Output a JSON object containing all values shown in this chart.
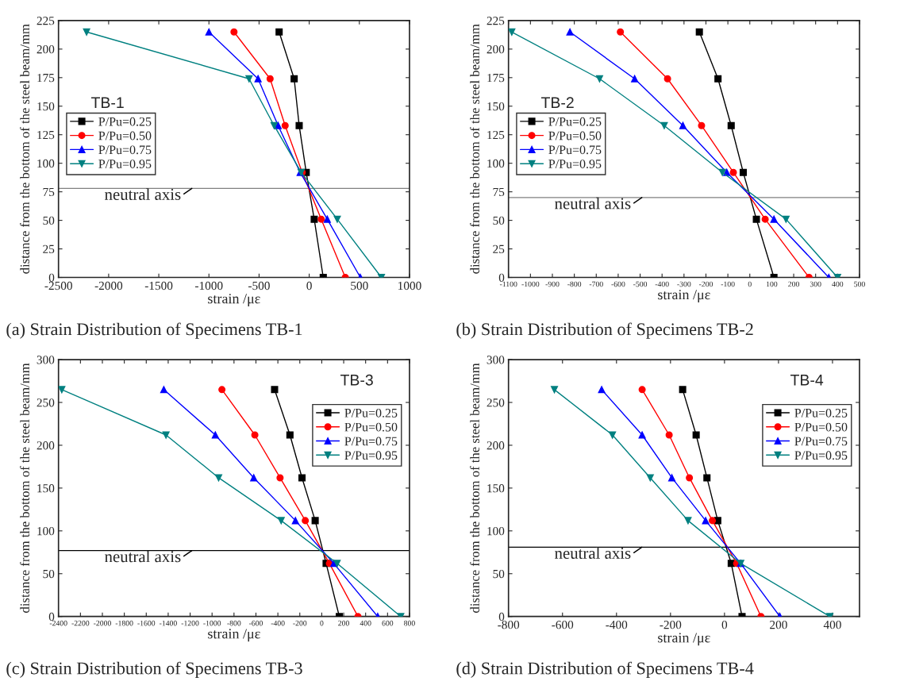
{
  "chart_data": [
    {
      "type": "line",
      "title": "(a) Strain Distribution of Specimens TB-1",
      "xlabel": "strain /με",
      "ylabel": "distance from the bottom of the steel beam/mm",
      "annotations": [
        "TB-1"
      ],
      "xlim": [
        -2500,
        1000
      ],
      "xticks": [
        -2500,
        -2000,
        -1500,
        -1000,
        -500,
        0,
        500,
        1000
      ],
      "ylim": [
        0,
        225
      ],
      "yticks": [
        0,
        25,
        50,
        75,
        100,
        125,
        150,
        175,
        200,
        225
      ],
      "legend": "left",
      "grid": false,
      "ref_lines": [
        {
          "axis": "y",
          "value": 78,
          "label": "neutral axis",
          "color": "#808080"
        }
      ],
      "series": [
        {
          "name": "P/Pu=0.25",
          "color": "#000000",
          "marker": "square",
          "x": [
            -300,
            -150,
            -100,
            -30,
            50,
            140
          ],
          "values": [
            215,
            174,
            133,
            92,
            51,
            0
          ]
        },
        {
          "name": "P/Pu=0.50",
          "color": "#ff0000",
          "marker": "circle",
          "x": [
            -750,
            -390,
            -240,
            -70,
            120,
            360
          ],
          "values": [
            215,
            174,
            133,
            92,
            51,
            0
          ]
        },
        {
          "name": "P/Pu=0.75",
          "color": "#0000ff",
          "marker": "triangle",
          "x": [
            -1000,
            -510,
            -310,
            -90,
            180,
            510
          ],
          "values": [
            215,
            174,
            133,
            92,
            51,
            0
          ]
        },
        {
          "name": "P/Pu=0.95",
          "color": "#008080",
          "marker": "triangle_down",
          "x": [
            -2220,
            -600,
            -350,
            -80,
            280,
            720
          ],
          "values": [
            215,
            174,
            133,
            92,
            51,
            0
          ]
        }
      ]
    },
    {
      "type": "line",
      "title": "(b) Strain Distribution of Specimens TB-2",
      "xlabel": "strain /με",
      "ylabel": "distance from the bottom of the steel beam/mm",
      "annotations": [
        "TB-2"
      ],
      "xlim": [
        -1100,
        500
      ],
      "xticks": [
        -1100,
        -1000,
        -900,
        -800,
        -700,
        -600,
        -500,
        -400,
        -300,
        -200,
        -100,
        0,
        100,
        200,
        300,
        400,
        500
      ],
      "ylim": [
        0,
        225
      ],
      "yticks": [
        0,
        25,
        50,
        75,
        100,
        125,
        150,
        175,
        200,
        225
      ],
      "legend": "left",
      "grid": false,
      "ref_lines": [
        {
          "axis": "y",
          "value": 70,
          "label": "neutral axis",
          "color": "#808080"
        }
      ],
      "series": [
        {
          "name": "P/Pu=0.25",
          "color": "#000000",
          "marker": "square",
          "x": [
            -230,
            -145,
            -85,
            -30,
            30,
            110
          ],
          "values": [
            215,
            174,
            133,
            92,
            51,
            0
          ]
        },
        {
          "name": "P/Pu=0.50",
          "color": "#ff0000",
          "marker": "circle",
          "x": [
            -590,
            -375,
            -220,
            -75,
            70,
            270
          ],
          "values": [
            215,
            174,
            133,
            92,
            51,
            0
          ]
        },
        {
          "name": "P/Pu=0.75",
          "color": "#0000ff",
          "marker": "triangle",
          "x": [
            -820,
            -525,
            -305,
            -105,
            110,
            360
          ],
          "values": [
            215,
            174,
            133,
            92,
            51,
            0
          ]
        },
        {
          "name": "P/Pu=0.95",
          "color": "#008080",
          "marker": "triangle_down",
          "x": [
            -1085,
            -685,
            -390,
            -125,
            165,
            400
          ],
          "values": [
            215,
            174,
            133,
            92,
            51,
            0
          ]
        }
      ]
    },
    {
      "type": "line",
      "title": "(c) Strain Distribution of Specimens TB-3",
      "xlabel": "strain /με",
      "ylabel": "distance from the bottom of the steel beam/mm",
      "annotations": [
        "TB-3"
      ],
      "xlim": [
        -2400,
        800
      ],
      "xticks": [
        -2400,
        -2200,
        -2000,
        -1800,
        -1600,
        -1400,
        -1200,
        -1000,
        -800,
        -600,
        -400,
        -200,
        0,
        200,
        400,
        600,
        800
      ],
      "ylim": [
        0,
        300
      ],
      "yticks": [
        0,
        50,
        100,
        150,
        200,
        250,
        300
      ],
      "legend": "top right",
      "grid": false,
      "ref_lines": [
        {
          "axis": "y",
          "value": 77,
          "label": "neutral axis",
          "color": "#000000"
        }
      ],
      "series": [
        {
          "name": "P/Pu=0.25",
          "color": "#000000",
          "marker": "square",
          "x": [
            -430,
            -290,
            -180,
            -60,
            40,
            160
          ],
          "values": [
            265,
            212,
            162,
            112,
            62,
            0
          ]
        },
        {
          "name": "P/Pu=0.50",
          "color": "#ff0000",
          "marker": "circle",
          "x": [
            -910,
            -610,
            -380,
            -150,
            70,
            330
          ],
          "values": [
            265,
            212,
            162,
            112,
            62,
            0
          ]
        },
        {
          "name": "P/Pu=0.75",
          "color": "#0000ff",
          "marker": "triangle",
          "x": [
            -1440,
            -970,
            -620,
            -240,
            110,
            510
          ],
          "values": [
            265,
            212,
            162,
            112,
            62,
            0
          ]
        },
        {
          "name": "P/Pu=0.95",
          "color": "#008080",
          "marker": "triangle_down",
          "x": [
            -2370,
            -1420,
            -940,
            -370,
            140,
            720
          ],
          "values": [
            265,
            212,
            162,
            112,
            62,
            0
          ]
        }
      ]
    },
    {
      "type": "line",
      "title": "(d) Strain Distribution of Specimens TB-4",
      "xlabel": "strain /με",
      "ylabel": "distance from the bottom of the steel beam/mm",
      "annotations": [
        "TB-4"
      ],
      "xlim": [
        -800,
        500
      ],
      "xticks": [
        -800,
        -600,
        -400,
        -200,
        0,
        200,
        400
      ],
      "ylim": [
        0,
        300
      ],
      "yticks": [
        0,
        50,
        100,
        150,
        200,
        250,
        300
      ],
      "legend": "top right",
      "grid": false,
      "ref_lines": [
        {
          "axis": "y",
          "value": 81,
          "label": "neutral axis",
          "color": "#000000"
        }
      ],
      "series": [
        {
          "name": "P/Pu=0.25",
          "color": "#000000",
          "marker": "square",
          "x": [
            -155,
            -105,
            -65,
            -25,
            25,
            65
          ],
          "values": [
            265,
            212,
            162,
            112,
            62,
            0
          ]
        },
        {
          "name": "P/Pu=0.50",
          "color": "#ff0000",
          "marker": "circle",
          "x": [
            -305,
            -205,
            -130,
            -45,
            45,
            135
          ],
          "values": [
            265,
            212,
            162,
            112,
            62,
            0
          ]
        },
        {
          "name": "P/Pu=0.75",
          "color": "#0000ff",
          "marker": "triangle",
          "x": [
            -455,
            -305,
            -195,
            -70,
            60,
            205
          ],
          "values": [
            265,
            212,
            162,
            112,
            62,
            0
          ]
        },
        {
          "name": "P/Pu=0.95",
          "color": "#008080",
          "marker": "triangle_down",
          "x": [
            -630,
            -415,
            -275,
            -135,
            60,
            390
          ],
          "values": [
            265,
            212,
            162,
            112,
            62,
            0
          ]
        }
      ]
    }
  ]
}
